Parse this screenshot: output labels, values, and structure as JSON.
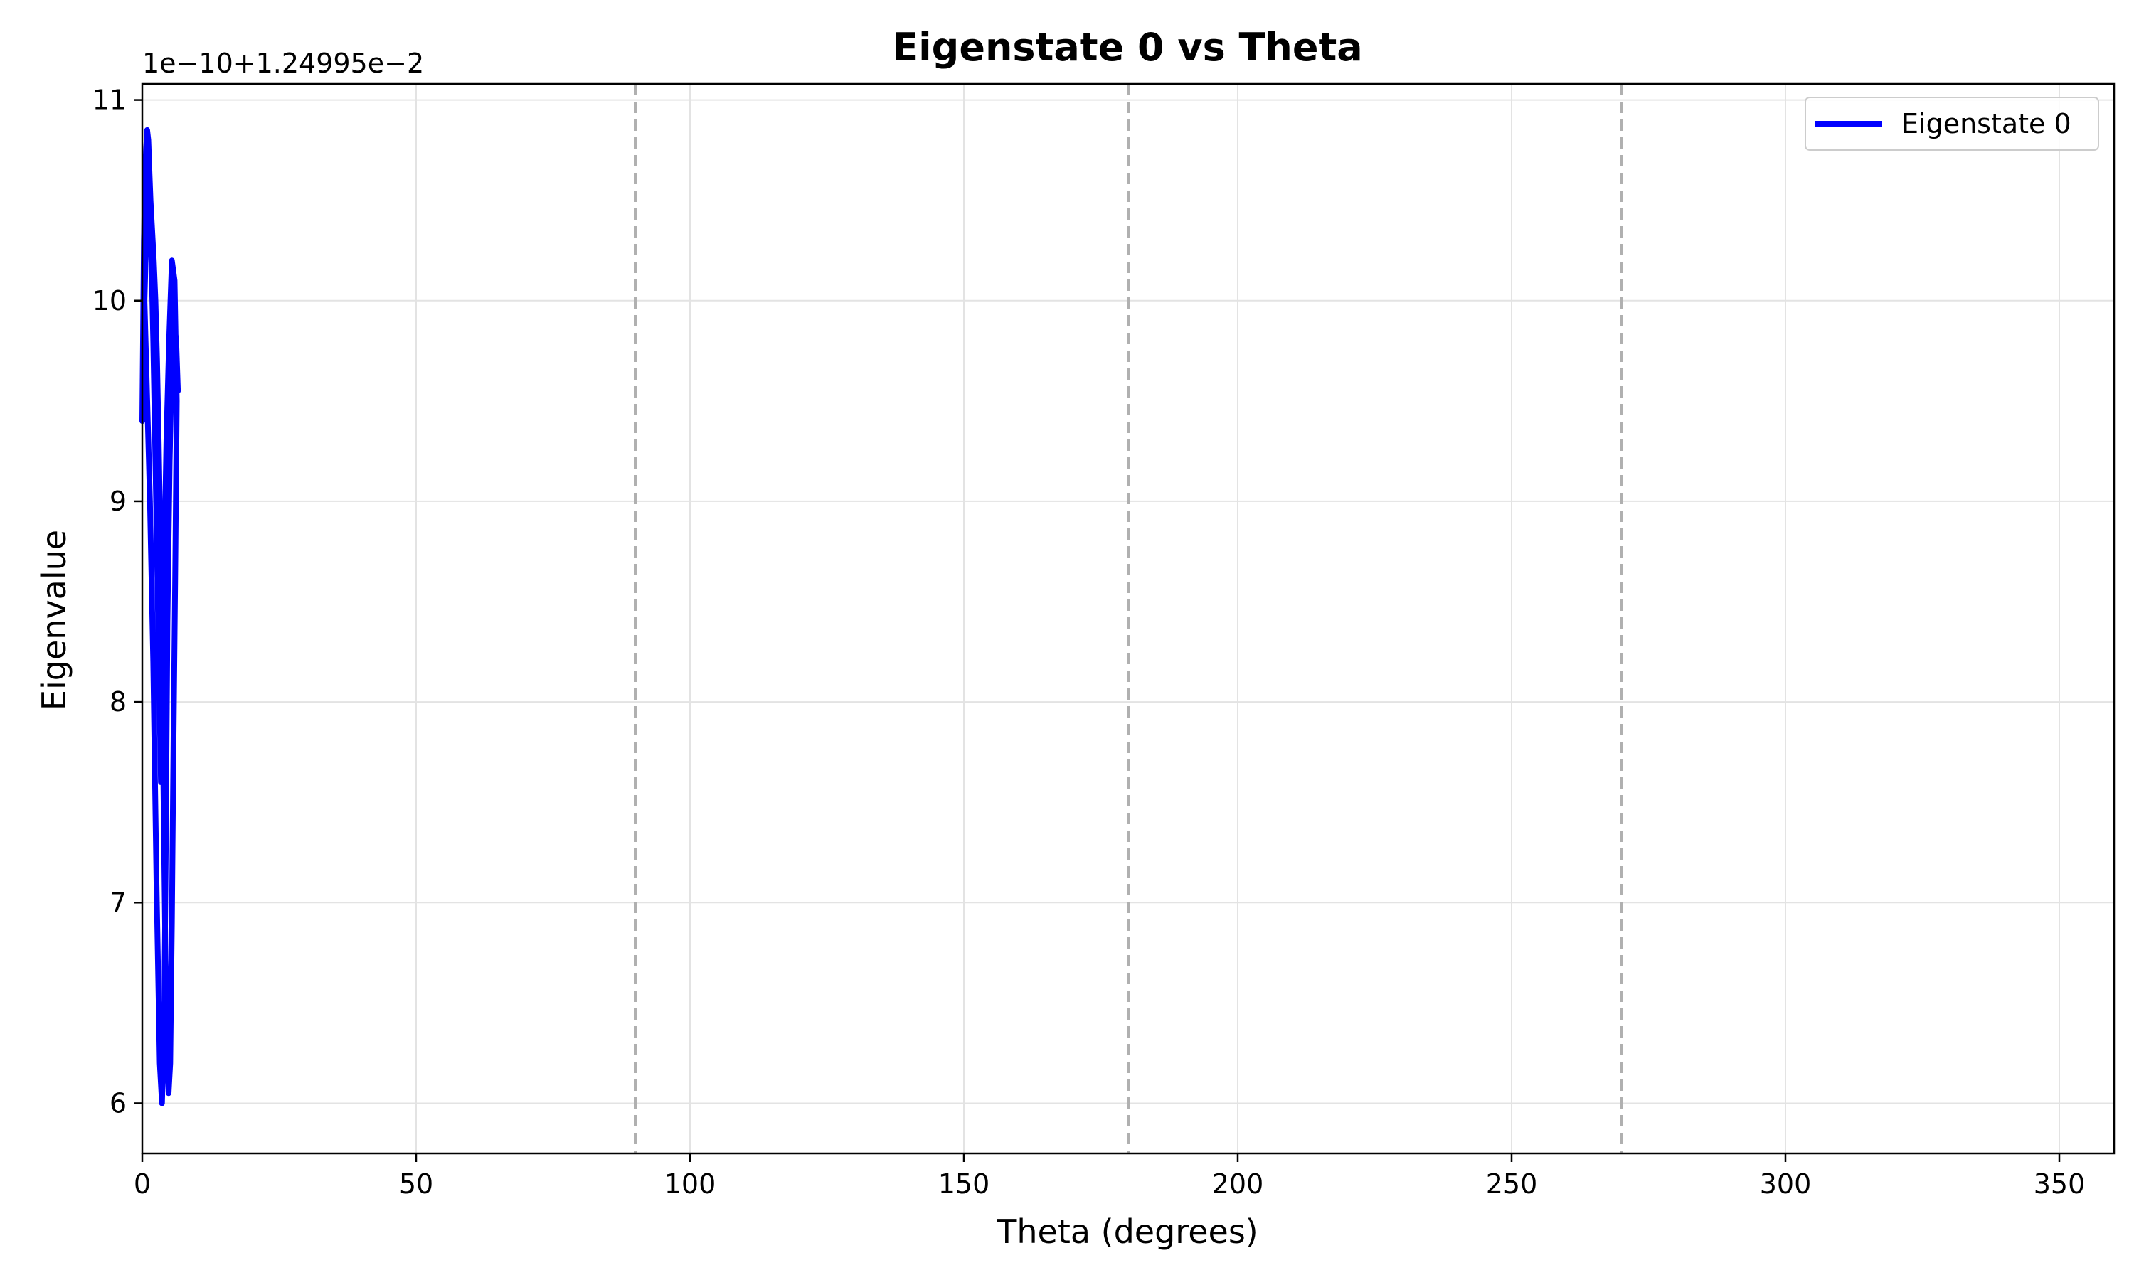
{
  "chart_data": {
    "type": "line",
    "title": "Eigenstate 0 vs Theta",
    "xlabel": "Theta (degrees)",
    "ylabel": "Eigenvalue",
    "y_offset_label": "1e−10+1.24995e−2",
    "xlim": [
      0,
      360
    ],
    "ylim": [
      5.75,
      11.08
    ],
    "x_ticks": [
      0,
      50,
      100,
      150,
      200,
      250,
      300,
      350
    ],
    "y_ticks": [
      6,
      7,
      8,
      9,
      10,
      11
    ],
    "grid": true,
    "legend_position": "top-right",
    "reference_lines_x": [
      90,
      180,
      270
    ],
    "series": [
      {
        "name": "Eigenstate 0",
        "color": "#0000ff",
        "x": [
          0.0,
          0.3,
          0.6,
          0.9,
          1.1,
          1.3,
          1.5,
          1.8,
          2.1,
          2.4,
          2.7,
          3.0,
          3.3,
          3.6,
          3.9,
          4.2,
          4.5,
          4.8,
          5.1,
          5.4,
          5.7,
          6.0,
          6.3,
          5.9,
          5.4,
          4.9,
          4.4,
          3.9,
          3.4,
          2.9,
          2.4,
          2.0,
          1.6,
          1.2,
          0.8,
          0.4,
          0.8,
          1.4,
          2.0,
          2.6,
          3.2,
          3.6,
          4.0,
          4.3,
          4.6,
          5.0,
          5.4,
          5.8,
          6.2,
          6.5
        ],
        "y": [
          9.4,
          10.3,
          10.7,
          10.85,
          10.8,
          10.65,
          10.5,
          10.35,
          10.2,
          10.0,
          9.7,
          9.3,
          8.8,
          8.2,
          7.5,
          6.8,
          6.3,
          6.05,
          6.2,
          6.9,
          7.8,
          8.6,
          9.5,
          10.1,
          10.2,
          9.8,
          9.3,
          8.5,
          7.6,
          8.4,
          9.2,
          9.8,
          10.3,
          10.55,
          10.4,
          10.0,
          9.6,
          9.0,
          8.2,
          7.1,
          6.2,
          6.0,
          6.4,
          7.3,
          8.4,
          9.2,
          9.7,
          9.9,
          9.8,
          9.55
        ]
      }
    ]
  }
}
